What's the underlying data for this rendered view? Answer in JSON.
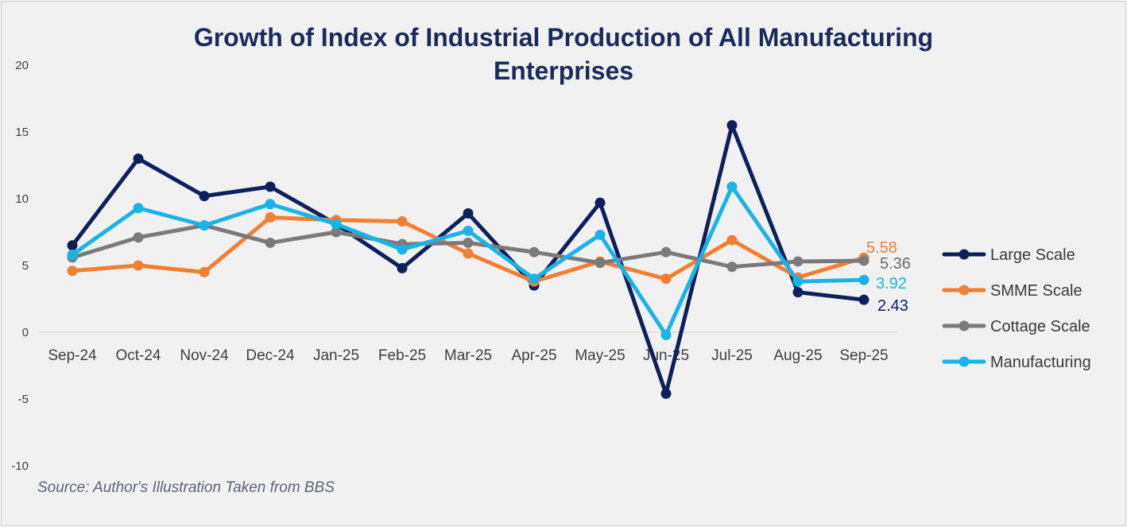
{
  "chart_data": {
    "type": "line",
    "title": "Growth of Index of Industrial Production of All Manufacturing Enterprises",
    "title_lines": [
      "Growth of Index of Industrial Production of All Manufacturing",
      "Enterprises"
    ],
    "xlabel": "",
    "ylabel": "",
    "ylim": [
      -10,
      20
    ],
    "yticks": [
      -10,
      -5,
      0,
      5,
      10,
      15,
      20
    ],
    "grid": false,
    "legend_position": "right",
    "categories": [
      "Sep-24",
      "Oct-24",
      "Nov-24",
      "Dec-24",
      "Jan-25",
      "Feb-25",
      "Mar-25",
      "Apr-25",
      "May-25",
      "Jun-25",
      "Jul-25",
      "Aug-25",
      "Sep-25"
    ],
    "series": [
      {
        "name": "Large Scale",
        "color": "#0e1f5b",
        "values": [
          6.5,
          13.0,
          10.2,
          10.9,
          8.1,
          4.8,
          8.9,
          3.5,
          9.7,
          -4.6,
          15.5,
          3.0,
          2.43
        ],
        "end_label": "2.43"
      },
      {
        "name": "SMME Scale",
        "color": "#f07f32",
        "values": [
          4.6,
          5.0,
          4.5,
          8.6,
          8.4,
          8.3,
          5.9,
          3.8,
          5.3,
          4.0,
          6.9,
          4.1,
          5.58
        ],
        "end_label": "5.58"
      },
      {
        "name": "Cottage Scale",
        "color": "#7a7a7a",
        "values": [
          5.6,
          7.1,
          8.0,
          6.7,
          7.5,
          6.6,
          6.7,
          6.0,
          5.2,
          6.0,
          4.9,
          5.3,
          5.36
        ],
        "end_label": "5.36"
      },
      {
        "name": "Manufacturing",
        "color": "#19b3e8",
        "values": [
          5.8,
          9.3,
          8.0,
          9.6,
          8.1,
          6.2,
          7.6,
          4.0,
          7.3,
          -0.2,
          10.9,
          3.8,
          3.92
        ],
        "end_label": "3.92"
      }
    ]
  },
  "source_note": "Source: Author's Illustration Taken from BBS"
}
